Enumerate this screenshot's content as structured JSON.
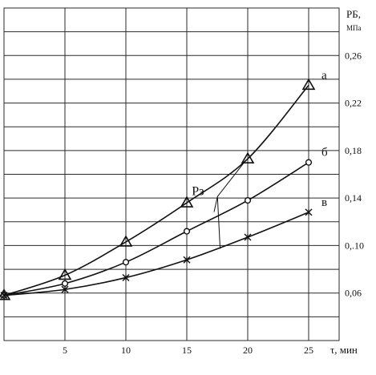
{
  "chart_data": {
    "type": "line",
    "x": [
      0,
      5,
      10,
      15,
      20,
      25
    ],
    "xticks": [
      "5",
      "10",
      "15",
      "20",
      "25"
    ],
    "xtick_values": [
      5,
      10,
      15,
      20,
      25
    ],
    "xlim": [
      0,
      27.5
    ],
    "xlabel": "τ, мин",
    "yticks": [
      "0,06",
      "0,.10",
      "0,14",
      "0,18",
      "0,22",
      "0,26"
    ],
    "ytick_values": [
      0.06,
      0.1,
      0.14,
      0.18,
      0.22,
      0.26
    ],
    "ylim": [
      0.02,
      0.3
    ],
    "ylabel_main": "PБ,",
    "ylabel_unit": "МПа",
    "grid": true,
    "series": [
      {
        "name": "а",
        "marker": "triangle",
        "values": [
          0.058,
          0.075,
          0.103,
          0.136,
          0.173,
          0.235
        ]
      },
      {
        "name": "б",
        "marker": "circle",
        "values": [
          0.058,
          0.068,
          0.086,
          0.112,
          0.138,
          0.17
        ]
      },
      {
        "name": "в",
        "marker": "cross",
        "values": [
          0.058,
          0.063,
          0.073,
          0.088,
          0.107,
          0.128
        ]
      }
    ],
    "annotation": {
      "label": "Рз",
      "anchor": [
        16.2,
        0.152
      ],
      "targets": [
        [
          20,
          0.173
        ],
        [
          17.5,
          0.131
        ],
        [
          18,
          0.1
        ]
      ]
    }
  }
}
